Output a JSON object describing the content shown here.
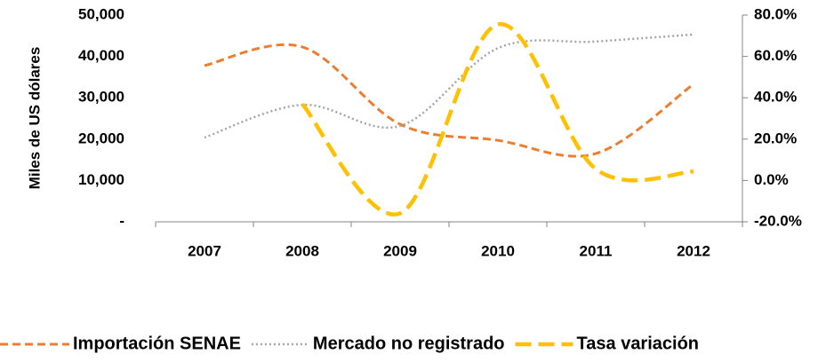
{
  "chart_data": {
    "type": "line",
    "y_label": "Miles de US dólares",
    "categories": [
      "2007",
      "2008",
      "2009",
      "2010",
      "2011",
      "2012"
    ],
    "series": [
      {
        "name": "Importación SENAE",
        "color": "#ED7D31",
        "dash": "dashed",
        "values": [
          37800,
          42300,
          23600,
          19700,
          16500,
          33300
        ]
      },
      {
        "name": "Mercado no registrado",
        "color": "#A5A5A5",
        "dash": "dotted",
        "values": [
          20400,
          28300,
          23200,
          42000,
          43600,
          45300
        ]
      },
      {
        "name": "Tasa variación",
        "color": "#FFC000",
        "dash": "long-dashed",
        "axis": "y2",
        "values": [
          null,
          36.9,
          -15.9,
          75.5,
          5.6,
          4.3
        ]
      }
    ],
    "ylim": [
      0,
      50000
    ],
    "yticks": [
      {
        "value": 0,
        "label": "-"
      },
      {
        "value": 10000,
        "label": "10,000"
      },
      {
        "value": 20000,
        "label": "20,000"
      },
      {
        "value": 30000,
        "label": "30,000"
      },
      {
        "value": 40000,
        "label": "40,000"
      },
      {
        "value": 50000,
        "label": "50,000"
      }
    ],
    "y2lim": [
      -20,
      80
    ],
    "y2ticks": [
      {
        "value": -20,
        "label": "-20.0%"
      },
      {
        "value": 0,
        "label": "0.0%"
      },
      {
        "value": 20,
        "label": "20.0%"
      },
      {
        "value": 40,
        "label": "40.0%"
      },
      {
        "value": 60,
        "label": "60.0%"
      },
      {
        "value": 80,
        "label": "80.0%"
      }
    ],
    "grid": false,
    "legend": "bottom"
  }
}
